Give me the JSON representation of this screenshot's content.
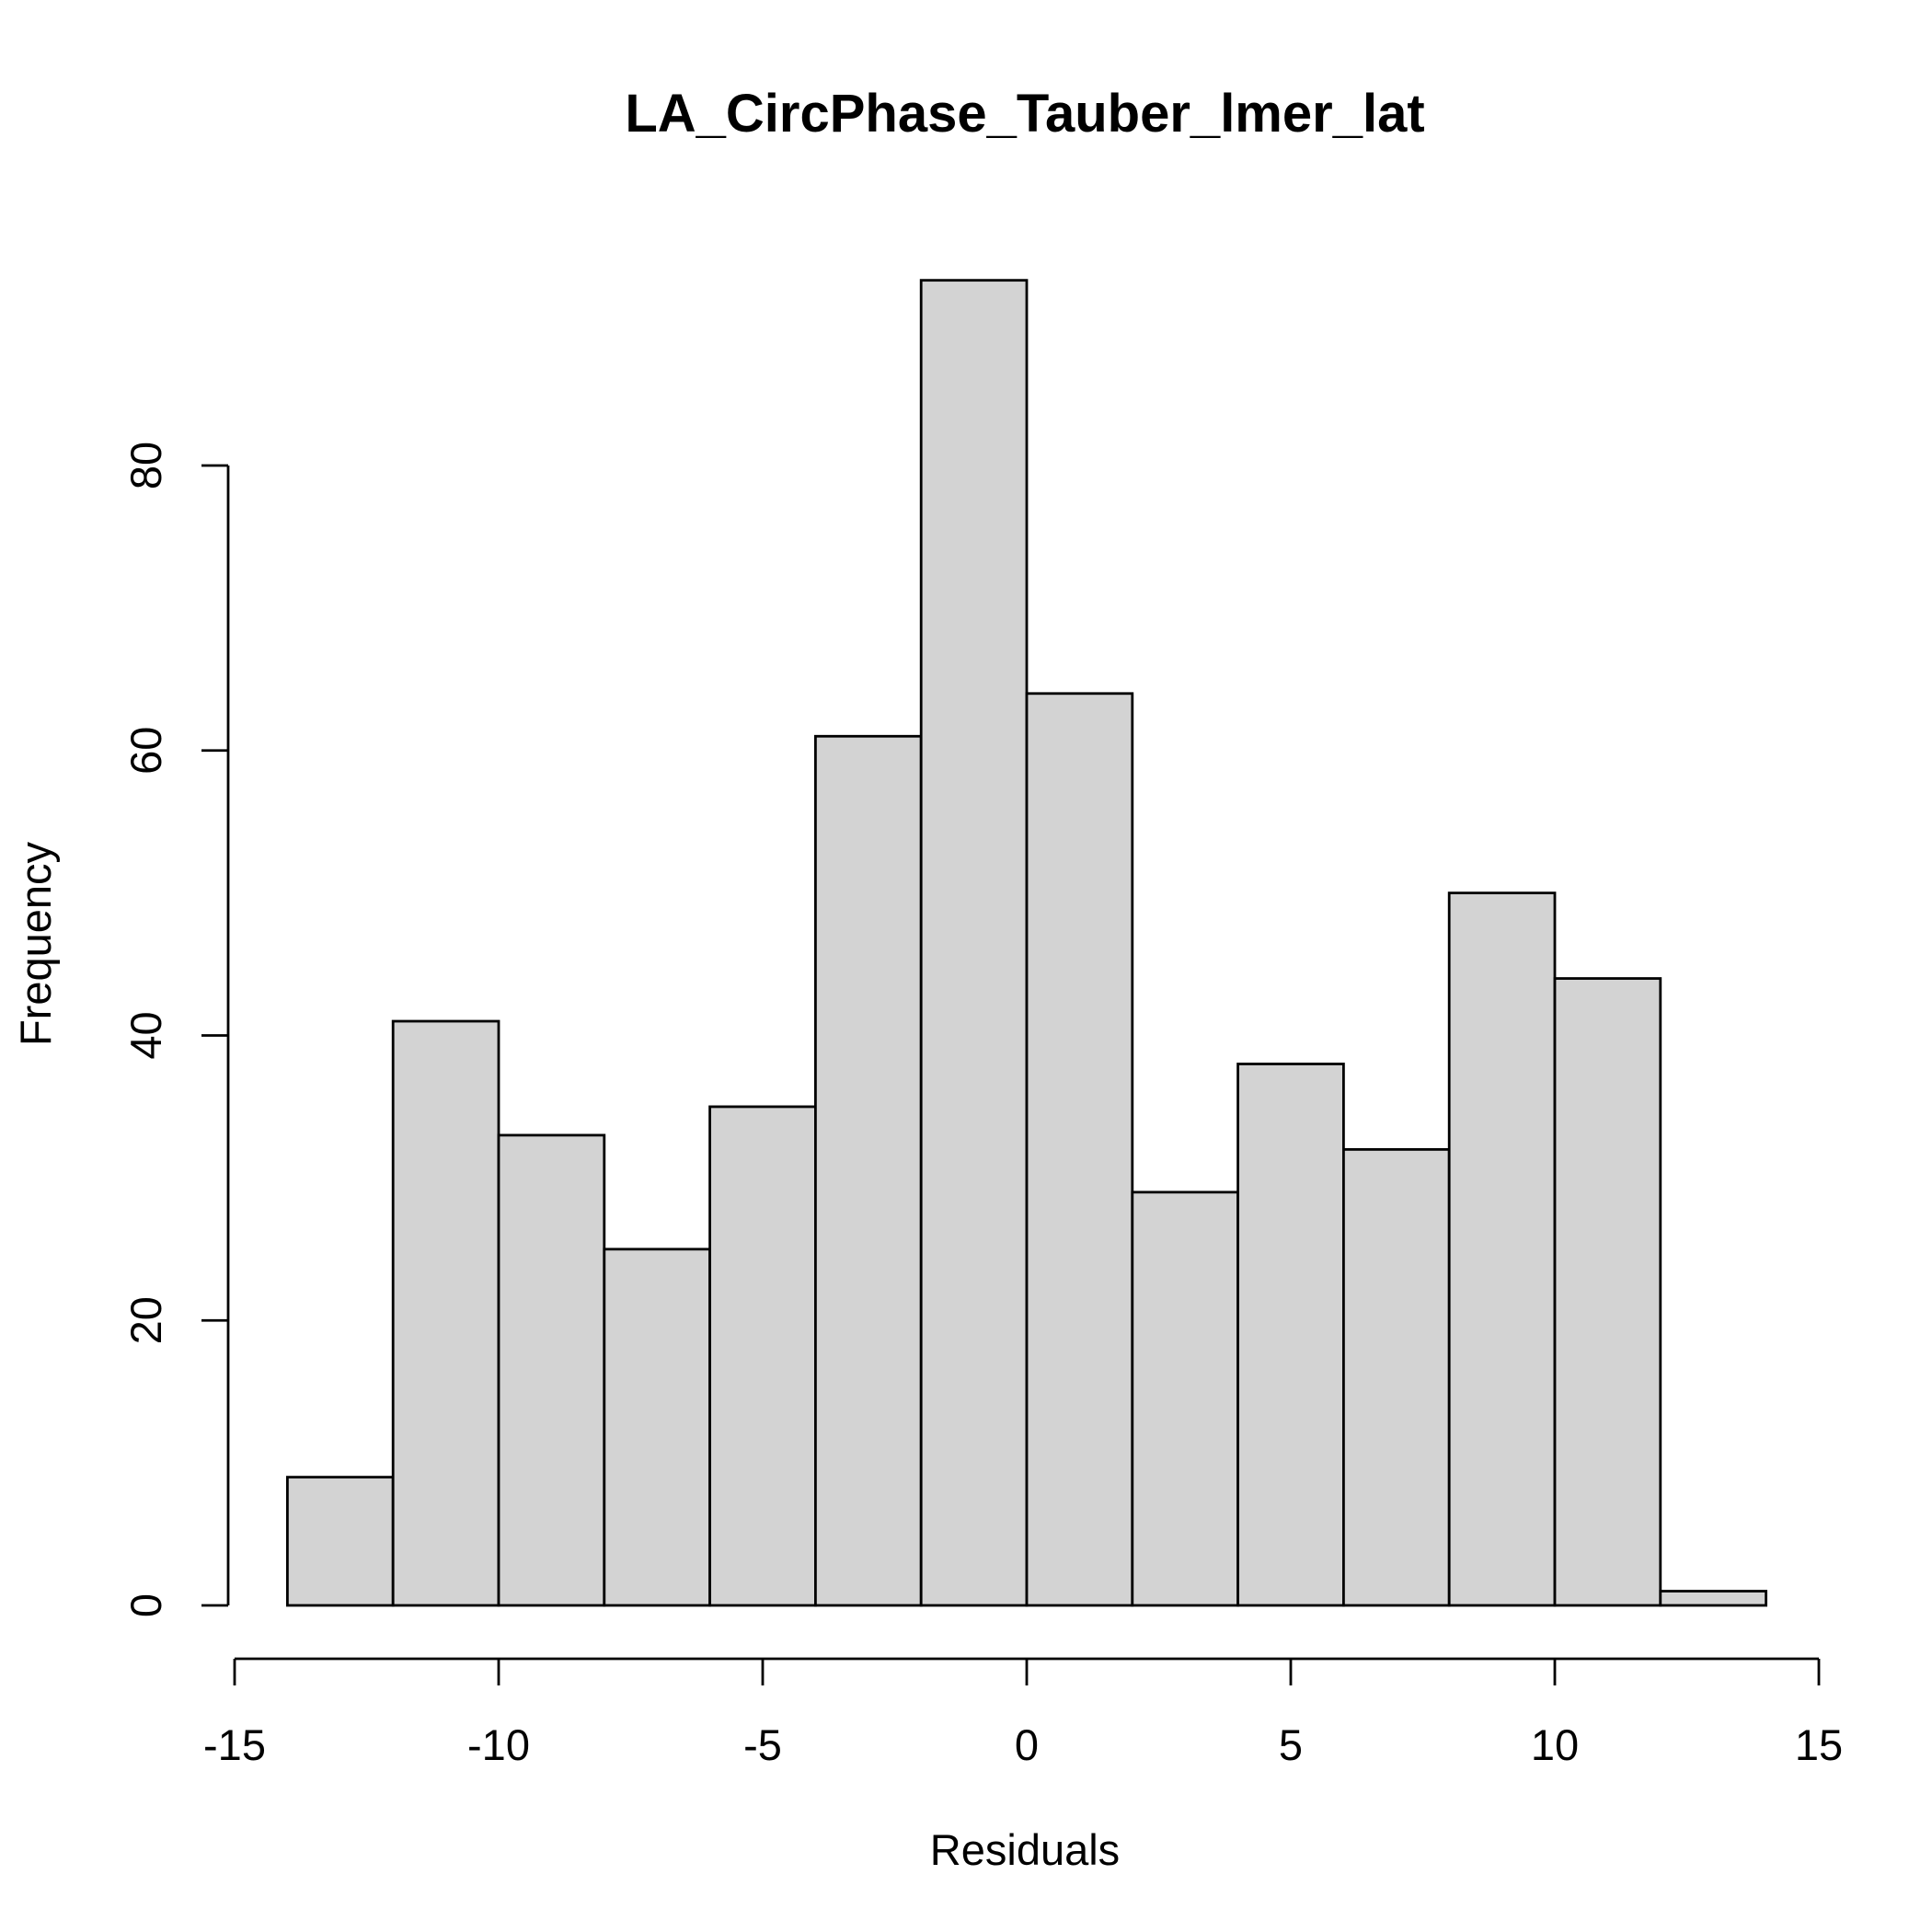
{
  "chart_data": {
    "type": "bar",
    "title": "LA_CircPhase_Tauber_lmer_lat",
    "xlabel": "Residuals",
    "ylabel": "Frequency",
    "bin_edges": [
      -14,
      -12,
      -10,
      -8,
      -6,
      -4,
      -2,
      0,
      2,
      4,
      6,
      8,
      10,
      12,
      14
    ],
    "values": [
      9,
      41,
      33,
      25,
      35,
      61,
      93,
      64,
      29,
      38,
      32,
      50,
      44,
      1
    ],
    "xlim": [
      -15,
      15
    ],
    "ylim": [
      0,
      80
    ],
    "x_ticks": [
      -15,
      -10,
      -5,
      0,
      5,
      10,
      15
    ],
    "x_tick_labels": [
      "-15",
      "-10",
      "-5",
      "0",
      "5",
      "10",
      "15"
    ],
    "y_ticks": [
      0,
      20,
      40,
      60,
      80
    ],
    "y_tick_labels": [
      "0",
      "20",
      "40",
      "60",
      "80"
    ],
    "grid": false,
    "bar_color": "#d3d3d3",
    "edge_color": "#000000"
  }
}
